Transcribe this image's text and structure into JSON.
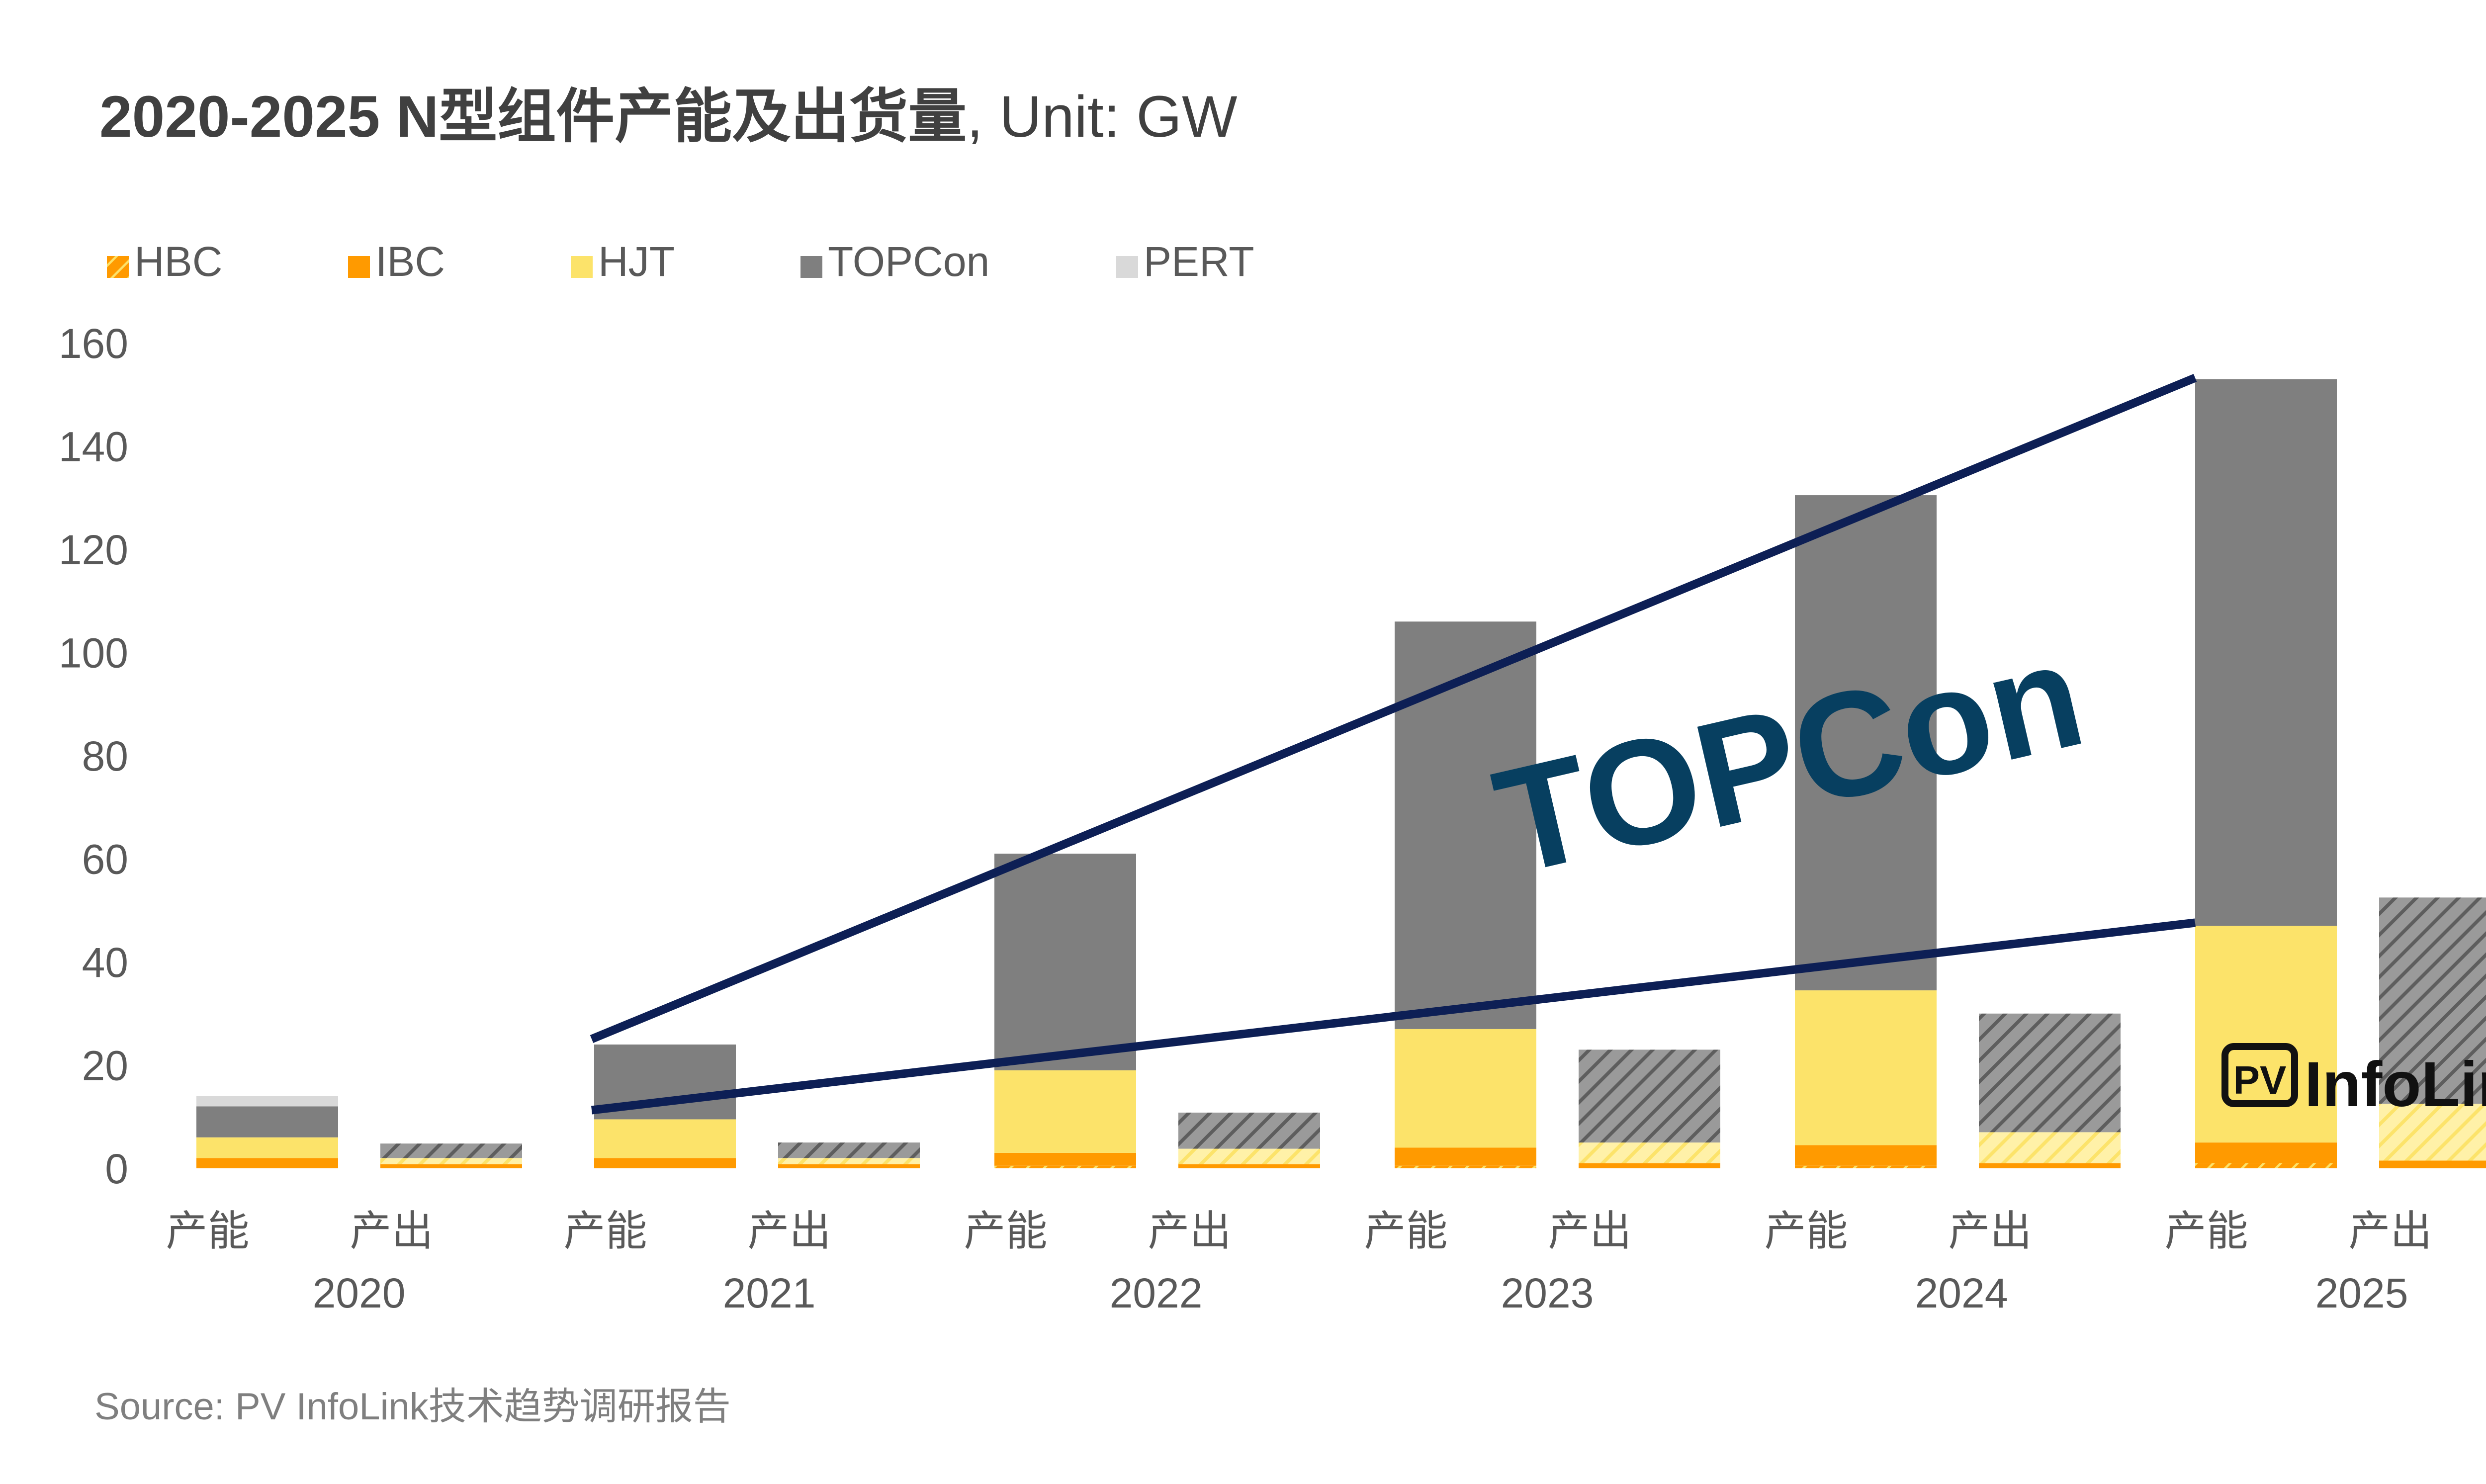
{
  "chart_data": {
    "type": "bar",
    "stacked": true,
    "title": "2020-2025 N型组件产能及出货量",
    "unit_label": ", Unit: GW",
    "source": "Source: PV InfoLink技术趋势调研报告",
    "annotation": "TOPCon",
    "logo": {
      "text": "InfoLink",
      "badge": "PV"
    },
    "ylim": [
      0,
      160
    ],
    "yticks": [
      0,
      20,
      40,
      60,
      80,
      100,
      120,
      140,
      160
    ],
    "years": [
      "2020",
      "2021",
      "2022",
      "2023",
      "2024",
      "2025"
    ],
    "bar_labels": [
      "产能",
      "产出"
    ],
    "categories": [
      "2020 产能",
      "2020 产出",
      "2021 产能",
      "2021 产出",
      "2022 产能",
      "2022 产出",
      "2023 产能",
      "2023 产出",
      "2024 产能",
      "2024 产出",
      "2025 产能",
      "2025 产出"
    ],
    "series": [
      {
        "name": "HBC",
        "values": [
          0,
          0,
          0,
          0,
          0.5,
          0,
          0.5,
          0,
          0.5,
          0,
          1,
          0
        ]
      },
      {
        "name": "IBC",
        "values": [
          2,
          0.8,
          2,
          0.8,
          2.5,
          0.8,
          3.5,
          1,
          4,
          1,
          4,
          1.5
        ]
      },
      {
        "name": "HJT",
        "values": [
          4,
          1.2,
          7.5,
          1.2,
          16,
          3,
          23,
          4,
          30,
          6,
          42,
          11
        ]
      },
      {
        "name": "TOPCon",
        "values": [
          6,
          2.8,
          14.5,
          3,
          42,
          7,
          79,
          18,
          96,
          23,
          106,
          40
        ]
      },
      {
        "name": "PERT",
        "values": [
          2,
          0,
          0,
          0,
          0,
          0,
          0,
          0,
          0,
          0,
          0,
          0
        ]
      }
    ],
    "colors": {
      "HBC": "#f7a800",
      "IBC": "#ff9a00",
      "HJT": "#fce36a",
      "TOPCon": "#7f7f7f",
      "PERT": "#d9d9d9",
      "trend_line": "#0d1f55",
      "annotation": "#073f60",
      "axis_text": "#595959",
      "title_text": "#404040"
    },
    "legend_position": "top-left",
    "grid": false
  }
}
